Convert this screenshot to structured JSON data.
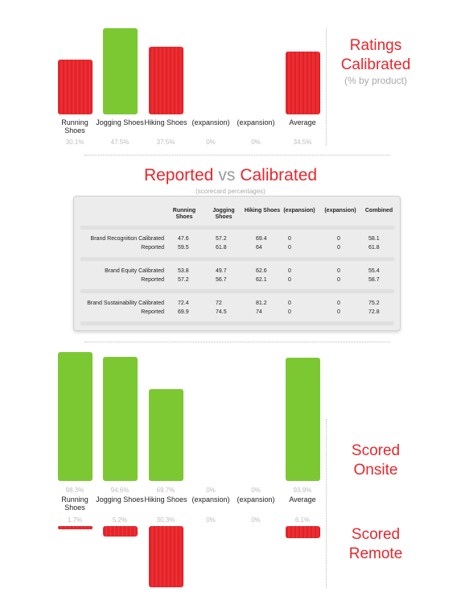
{
  "chart_data": [
    {
      "type": "bar",
      "title": "Ratings Calibrated",
      "subtitle": "(% by product)",
      "categories": [
        "Running Shoes",
        "Jogging Shoes",
        "Hiking Shoes",
        "(expansion)",
        "(expansion)",
        "Average"
      ],
      "values": [
        30.1,
        47.5,
        37.5,
        0,
        0,
        34.5
      ],
      "value_labels": [
        "30.1%",
        "47.5%",
        "37.5%",
        "0%",
        "0%",
        "34.5%"
      ],
      "colors": [
        "#e8262c",
        "#7cc832",
        "#e8262c",
        "#e8262c",
        "#e8262c",
        "#e8262c"
      ],
      "ylim": [
        0,
        50
      ]
    },
    {
      "type": "bar",
      "title": "Scored Onsite",
      "categories": [
        "Running Shoes",
        "Jogging Shoes",
        "Hiking Shoes",
        "(expansion)",
        "(expansion)",
        "Average"
      ],
      "values": [
        98.3,
        94.6,
        69.7,
        0,
        0,
        93.9
      ],
      "value_labels": [
        "98.3%",
        "94.6%",
        "69.7%",
        "0%",
        "0%",
        "93.9%"
      ],
      "color": "#7cc832",
      "ylim": [
        0,
        100
      ]
    },
    {
      "type": "bar",
      "title": "Scored Remote",
      "values": [
        1.7,
        5.2,
        30.3,
        0,
        0,
        6.1
      ],
      "value_labels": [
        "1.7%",
        "5.2%",
        "30.3%",
        "0%",
        "0%",
        "6.1%"
      ],
      "color": "#e8262c",
      "ylim": [
        0,
        30
      ]
    }
  ],
  "table": {
    "title_words": [
      "Reported",
      "vs",
      "Calibrated"
    ],
    "subtitle": "(scorecard percentages)",
    "columns": [
      "Running Shoes",
      "Jogging Shoes",
      "Hiking Shoes",
      "(expansion)",
      "(expansion)",
      "Combined"
    ],
    "groups": [
      {
        "rows": [
          {
            "label": "Brand Recognition Calibrated",
            "cells": [
              47.6,
              57.2,
              69.4,
              0,
              0,
              58.1
            ]
          },
          {
            "label": "Reported",
            "cells": [
              59.5,
              61.8,
              64,
              0,
              0,
              61.8
            ]
          }
        ]
      },
      {
        "rows": [
          {
            "label": "Brand Equity Calibrated",
            "cells": [
              53.8,
              49.7,
              62.6,
              0,
              0,
              55.4
            ]
          },
          {
            "label": "Reported",
            "cells": [
              57.2,
              56.7,
              62.1,
              0,
              0,
              58.7
            ]
          }
        ]
      },
      {
        "rows": [
          {
            "label": "Brand Sustainability Calibrated",
            "cells": [
              72.4,
              72,
              81.2,
              0,
              0,
              75.2
            ]
          },
          {
            "label": "Reported",
            "cells": [
              69.9,
              74.5,
              74,
              0,
              0,
              72.8
            ]
          }
        ]
      }
    ]
  }
}
